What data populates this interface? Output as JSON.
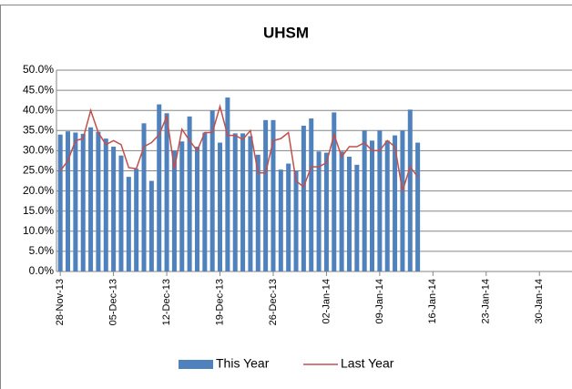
{
  "chart_data": {
    "type": "bar",
    "title": "UHSM",
    "categories": [
      "28-Nov-13",
      null,
      null,
      null,
      null,
      null,
      null,
      "05-Dec-13",
      null,
      null,
      null,
      null,
      null,
      null,
      "12-Dec-13",
      null,
      null,
      null,
      null,
      null,
      null,
      "19-Dec-13",
      null,
      null,
      null,
      null,
      null,
      null,
      "26-Dec-13",
      null,
      null,
      null,
      null,
      null,
      null,
      "02-Jan-14",
      null,
      null,
      null,
      null,
      null,
      null,
      "09-Jan-14",
      null,
      null,
      null,
      null,
      null,
      null,
      "16-Jan-14",
      null,
      null,
      null,
      null,
      null,
      null,
      "23-Jan-14",
      null,
      null,
      null,
      null,
      null,
      null,
      "30-Jan-14"
    ],
    "series": [
      {
        "name": "This Year",
        "type": "bar",
        "color": "#4f81bd",
        "values": [
          34.0,
          34.8,
          34.5,
          34.2,
          35.8,
          34.7,
          33.0,
          31.0,
          28.8,
          23.5,
          25.5,
          36.8,
          22.5,
          41.5,
          39.3,
          30.0,
          32.3,
          38.5,
          31.0,
          34.5,
          40.0,
          32.0,
          43.2,
          34.3,
          34.3,
          33.6,
          29.0,
          37.6,
          37.6,
          25.3,
          26.8,
          25.0,
          36.2,
          38.0,
          29.8,
          29.5,
          39.5,
          29.8,
          28.5,
          26.5,
          35.0,
          32.5,
          35.0,
          32.5,
          33.8,
          35.0,
          40.2,
          32.0,
          null,
          null,
          null,
          null,
          null,
          null,
          null,
          null,
          null,
          null,
          null,
          null,
          null,
          null,
          null,
          null
        ]
      },
      {
        "name": "Last Year",
        "type": "line",
        "color": "#c0504d",
        "values": [
          25.0,
          27.5,
          32.5,
          33.0,
          40.0,
          34.5,
          31.5,
          32.5,
          31.5,
          25.8,
          25.5,
          31.0,
          32.0,
          34.0,
          38.5,
          25.5,
          35.3,
          32.5,
          30.0,
          34.5,
          34.5,
          41.0,
          33.8,
          33.8,
          32.8,
          35.0,
          24.5,
          24.5,
          32.5,
          33.0,
          34.5,
          22.5,
          21.0,
          26.0,
          26.0,
          27.0,
          34.0,
          28.5,
          31.0,
          31.0,
          32.0,
          30.0,
          30.0,
          32.5,
          31.0,
          20.0,
          26.0,
          23.5,
          null,
          null,
          null,
          null,
          null,
          null,
          null,
          null,
          null,
          null,
          null,
          null,
          null,
          null,
          null,
          null
        ]
      }
    ],
    "ylim": [
      0,
      50
    ],
    "yticks": [
      {
        "value": 0,
        "label": "0.0%"
      },
      {
        "value": 5,
        "label": "5.0%"
      },
      {
        "value": 10,
        "label": "10.0%"
      },
      {
        "value": 15,
        "label": "15.0%"
      },
      {
        "value": 20,
        "label": "20.0%"
      },
      {
        "value": 25,
        "label": "25.0%"
      },
      {
        "value": 30,
        "label": "30.0%"
      },
      {
        "value": 35,
        "label": "35.0%"
      },
      {
        "value": 40,
        "label": "40.0%"
      },
      {
        "value": 45,
        "label": "45.0%"
      },
      {
        "value": 50,
        "label": "50.0%"
      }
    ],
    "grid": true,
    "legend": "bottom"
  }
}
